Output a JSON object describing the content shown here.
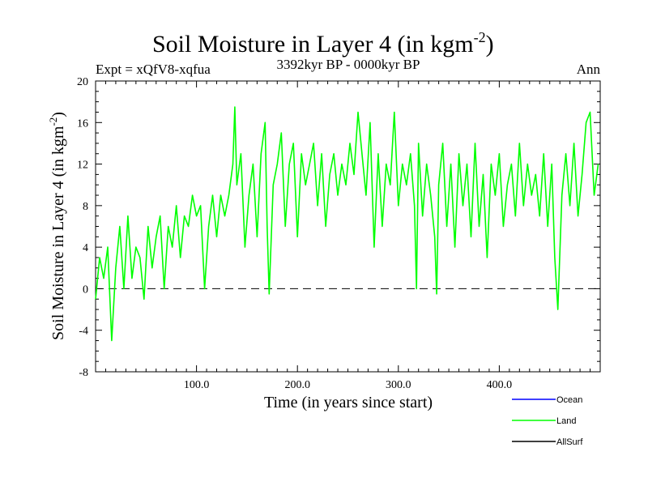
{
  "chart_data": {
    "type": "line",
    "title": "Soil Moisture in Layer 4 (in kgm",
    "title_sup": "-2",
    "title_close": ")",
    "subtitle_left": "Expt = xQfV8-xqfua",
    "subtitle_center": "3392kyr BP - 0000kyr BP",
    "subtitle_right": "Ann",
    "xlabel": "Time (in years since start)",
    "ylabel": "Soil Moisture in Layer 4 (in kgm",
    "ylabel_sup": "-2",
    "ylabel_close": ")",
    "xlim": [
      0,
      500
    ],
    "ylim": [
      -8,
      20
    ],
    "x_ticks": [
      {
        "value": 100,
        "label": "100.0"
      },
      {
        "value": 200,
        "label": "200.0"
      },
      {
        "value": 300,
        "label": "300.0"
      },
      {
        "value": 400,
        "label": "400.0"
      }
    ],
    "y_ticks": [
      {
        "value": -8,
        "label": "-8"
      },
      {
        "value": -4,
        "label": "-4"
      },
      {
        "value": 0,
        "label": "0"
      },
      {
        "value": 4,
        "label": "4"
      },
      {
        "value": 8,
        "label": "8"
      },
      {
        "value": 12,
        "label": "12"
      },
      {
        "value": 16,
        "label": "16"
      },
      {
        "value": 20,
        "label": "20"
      }
    ],
    "reference_line": {
      "y": 0,
      "style": "dashed"
    },
    "legend": [
      {
        "name": "Ocean",
        "color": "#0000ff"
      },
      {
        "name": "Land",
        "color": "#00ff00"
      },
      {
        "name": "AllSurf",
        "color": "#000000"
      }
    ],
    "series": [
      {
        "name": "Land",
        "color": "#00ff00",
        "x": [
          0,
          4,
          8,
          12,
          16,
          20,
          24,
          28,
          32,
          36,
          40,
          44,
          48,
          52,
          56,
          60,
          64,
          68,
          72,
          76,
          80,
          84,
          88,
          92,
          96,
          100,
          104,
          108,
          112,
          116,
          120,
          124,
          128,
          132,
          136,
          138,
          140,
          144,
          148,
          152,
          156,
          160,
          164,
          168,
          170,
          172,
          176,
          180,
          184,
          188,
          192,
          196,
          200,
          204,
          208,
          212,
          216,
          220,
          224,
          228,
          232,
          236,
          240,
          244,
          248,
          252,
          256,
          260,
          264,
          268,
          272,
          276,
          280,
          284,
          288,
          292,
          296,
          300,
          304,
          308,
          312,
          316,
          318,
          320,
          324,
          328,
          332,
          336,
          338,
          340,
          344,
          348,
          352,
          356,
          360,
          364,
          368,
          372,
          376,
          380,
          384,
          388,
          392,
          396,
          400,
          404,
          408,
          412,
          416,
          420,
          424,
          428,
          432,
          436,
          440,
          444,
          448,
          452,
          455,
          458,
          462,
          466,
          470,
          474,
          478,
          482,
          486,
          490,
          494,
          498
        ],
        "values": [
          -1,
          3,
          1,
          4,
          -5,
          2,
          6,
          0,
          7,
          1,
          4,
          3,
          -1,
          6,
          2,
          5,
          7,
          0,
          6,
          4,
          8,
          3,
          7,
          6,
          9,
          7,
          8,
          0,
          6,
          9,
          5,
          9,
          7,
          9,
          12,
          17.5,
          10,
          13,
          4,
          9,
          12,
          5,
          13,
          16,
          6,
          -0.5,
          10,
          12,
          15,
          6,
          12,
          14,
          5,
          13,
          10,
          12,
          14,
          8,
          13,
          6,
          11,
          13,
          9,
          12,
          10,
          14,
          11,
          17,
          13,
          9,
          16,
          4,
          13,
          6,
          12,
          10,
          17,
          8,
          12,
          10,
          13,
          8,
          0,
          14,
          7,
          12,
          9,
          5,
          -0.5,
          10,
          14,
          6,
          12,
          4,
          13,
          8,
          12,
          5,
          14,
          6,
          11,
          3,
          12,
          9,
          13,
          6,
          10,
          12,
          7,
          14,
          8,
          12,
          9,
          11,
          7,
          13,
          6,
          12,
          3,
          -2,
          9,
          13,
          8,
          14,
          7,
          11,
          16,
          17,
          9,
          12
        ]
      }
    ]
  }
}
